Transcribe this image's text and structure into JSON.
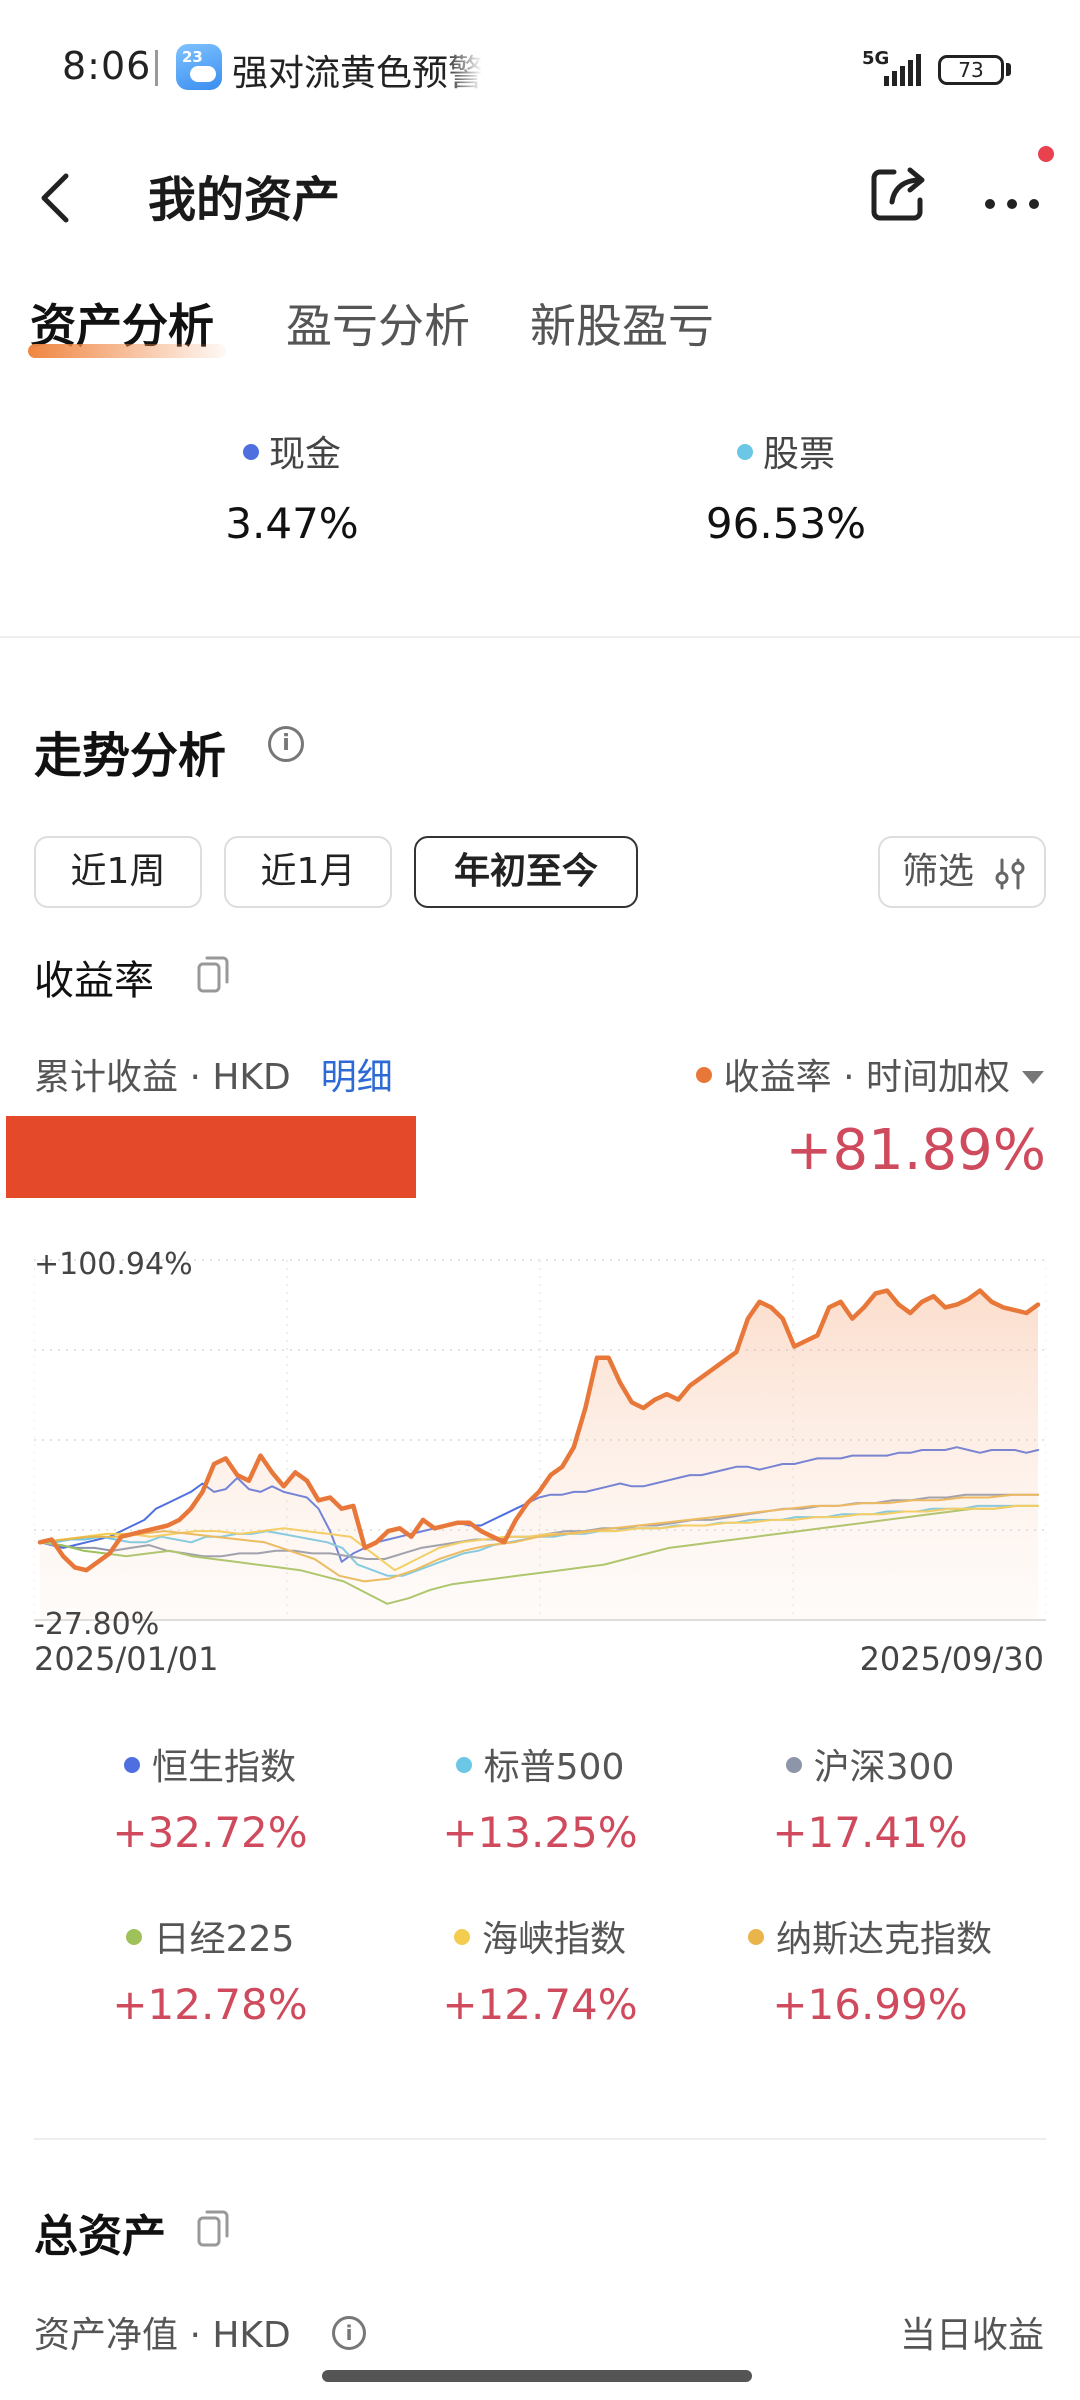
{
  "status_bar": {
    "time": "8:06",
    "notification": "强对流黄色预警",
    "notification_icon_day": "23",
    "network": "5G",
    "battery": "73"
  },
  "header": {
    "title": "我的资产"
  },
  "tabs": [
    {
      "label": "资产分析",
      "active": true
    },
    {
      "label": "盈亏分析",
      "active": false
    },
    {
      "label": "新股盈亏",
      "active": false
    }
  ],
  "allocation": [
    {
      "label": "现金",
      "value": "3.47%",
      "color": "#4f6fe0"
    },
    {
      "label": "股票",
      "value": "96.53%",
      "color": "#6cc7e6"
    }
  ],
  "trend": {
    "title": "走势分析",
    "ranges": [
      {
        "label": "近1周",
        "active": false
      },
      {
        "label": "近1月",
        "active": false
      },
      {
        "label": "年初至今",
        "active": true
      }
    ],
    "filter_label": "筛选",
    "subtitle": "收益率",
    "cumulative_label": "累计收益 · HKD",
    "detail_link": "明细",
    "rate_label": "收益率 · 时间加权",
    "total_return": "+81.89%"
  },
  "chart_data": {
    "type": "line",
    "x_start": "2025/01/01",
    "x_end": "2025/09/30",
    "ylim": [
      -27.8,
      100.94
    ],
    "y_max_label": "+100.94%",
    "y_min_label": "-27.80%",
    "grid": true,
    "series": [
      {
        "name": "收益率",
        "color": "#e8783a",
        "fill": true,
        "values": [
          0,
          1,
          -5,
          -9,
          -10,
          -7,
          -4,
          2,
          3,
          4,
          5,
          6,
          8,
          12,
          18,
          28,
          30,
          24,
          22,
          31,
          25,
          20,
          25,
          22,
          15,
          16,
          12,
          13,
          -2,
          0,
          4,
          5,
          2,
          8,
          5,
          6,
          7,
          7,
          4,
          2,
          0,
          8,
          14,
          18,
          24,
          27,
          34,
          48,
          66,
          66,
          57,
          50,
          48,
          51,
          53,
          51,
          56,
          59,
          62,
          65,
          68,
          80,
          86,
          84,
          80,
          70,
          72,
          74,
          84,
          86,
          80,
          84,
          89,
          90,
          85,
          82,
          86,
          88,
          84,
          85,
          87,
          90,
          86,
          84,
          83,
          82,
          85
        ]
      },
      {
        "name": "恒生指数",
        "color": "#4f6fe0",
        "values": [
          0,
          -1,
          -2,
          -1,
          0,
          1,
          2,
          4,
          6,
          8,
          12,
          14,
          16,
          18,
          21,
          18,
          19,
          23,
          19,
          18,
          20,
          18,
          17,
          16,
          12,
          4,
          -7,
          -4,
          -2,
          0,
          1,
          2,
          3,
          4,
          5,
          6,
          7,
          6,
          6,
          8,
          10,
          12,
          14,
          16,
          17,
          17,
          18,
          18,
          19,
          20,
          21,
          20,
          20,
          21,
          22,
          23,
          24,
          24,
          25,
          26,
          27,
          27,
          26,
          27,
          28,
          28,
          29,
          30,
          30,
          30,
          31,
          31,
          31,
          31,
          32,
          32,
          33,
          33,
          33,
          34,
          33,
          32,
          33,
          33,
          33,
          32,
          33
        ]
      },
      {
        "name": "标普500",
        "color": "#6cc7e6",
        "values": [
          0,
          0,
          1,
          1,
          2,
          1,
          0,
          0,
          2,
          1,
          0,
          2,
          2,
          3,
          3,
          4,
          3,
          2,
          1,
          0,
          -2,
          -8,
          -10,
          -12,
          -12,
          -10,
          -8,
          -6,
          -4,
          -3,
          -1,
          0,
          1,
          2,
          2,
          3,
          3,
          4,
          4,
          5,
          5,
          5,
          6,
          6,
          6,
          7,
          7,
          8,
          8,
          8,
          9,
          9,
          9,
          10,
          10,
          10,
          11,
          11,
          11,
          12,
          12,
          12,
          13,
          13,
          13,
          13,
          13
        ]
      },
      {
        "name": "沪深300",
        "color": "#8c96a8",
        "values": [
          0,
          -1,
          -2,
          -2,
          -3,
          -2,
          -1,
          -3,
          -4,
          -5,
          -5,
          -4,
          -4,
          -3,
          -3,
          -4,
          -4,
          -5,
          -6,
          -6,
          -4,
          -2,
          -1,
          0,
          1,
          1,
          2,
          2,
          3,
          4,
          4,
          5,
          5,
          6,
          6,
          7,
          8,
          8,
          9,
          10,
          11,
          12,
          12,
          13,
          13,
          14,
          14,
          15,
          15,
          16,
          16,
          17,
          17,
          17,
          17,
          17
        ]
      },
      {
        "name": "日经225",
        "color": "#9fc15a",
        "values": [
          0,
          -1,
          -3,
          -4,
          -5,
          -4,
          -3,
          -5,
          -6,
          -7,
          -8,
          -9,
          -10,
          -12,
          -14,
          -18,
          -22,
          -20,
          -17,
          -15,
          -14,
          -13,
          -12,
          -11,
          -10,
          -9,
          -8,
          -6,
          -4,
          -2,
          -1,
          0,
          1,
          2,
          3,
          4,
          5,
          6,
          7,
          8,
          9,
          10,
          11,
          12,
          12,
          13,
          13
        ]
      },
      {
        "name": "海峡指数",
        "color": "#f2cd4f",
        "values": [
          0,
          1,
          2,
          3,
          3,
          2,
          3,
          4,
          4,
          3,
          4,
          5,
          4,
          3,
          2,
          -4,
          -10,
          -6,
          -2,
          0,
          1,
          2,
          2,
          3,
          3,
          4,
          4,
          5,
          5,
          6,
          6,
          7,
          7,
          8,
          8,
          9,
          9,
          10,
          10,
          11,
          11,
          12,
          12,
          12,
          13,
          13
        ]
      },
      {
        "name": "纳斯达克指数",
        "color": "#e9b54b",
        "values": [
          0,
          1,
          2,
          2,
          3,
          4,
          3,
          2,
          1,
          0,
          -3,
          -6,
          -12,
          -14,
          -13,
          -10,
          -6,
          -3,
          -1,
          0,
          2,
          3,
          4,
          5,
          6,
          7,
          8,
          9,
          10,
          11,
          12,
          13,
          13,
          14,
          14,
          15,
          15,
          16,
          16,
          17,
          17
        ]
      }
    ]
  },
  "benchmarks": [
    {
      "label": "恒生指数",
      "value": "+32.72%",
      "color": "#4f6fe0"
    },
    {
      "label": "标普500",
      "value": "+13.25%",
      "color": "#6cc7e6"
    },
    {
      "label": "沪深300",
      "value": "+17.41%",
      "color": "#8c96a8"
    },
    {
      "label": "日经225",
      "value": "+12.78%",
      "color": "#9fc15a"
    },
    {
      "label": "海峡指数",
      "value": "+12.74%",
      "color": "#f2cd4f"
    },
    {
      "label": "纳斯达克指数",
      "value": "+16.99%",
      "color": "#e9b54b"
    }
  ],
  "total_assets": {
    "title": "总资产",
    "net_value_label": "资产净值 · HKD",
    "day_income_label": "当日收益"
  }
}
